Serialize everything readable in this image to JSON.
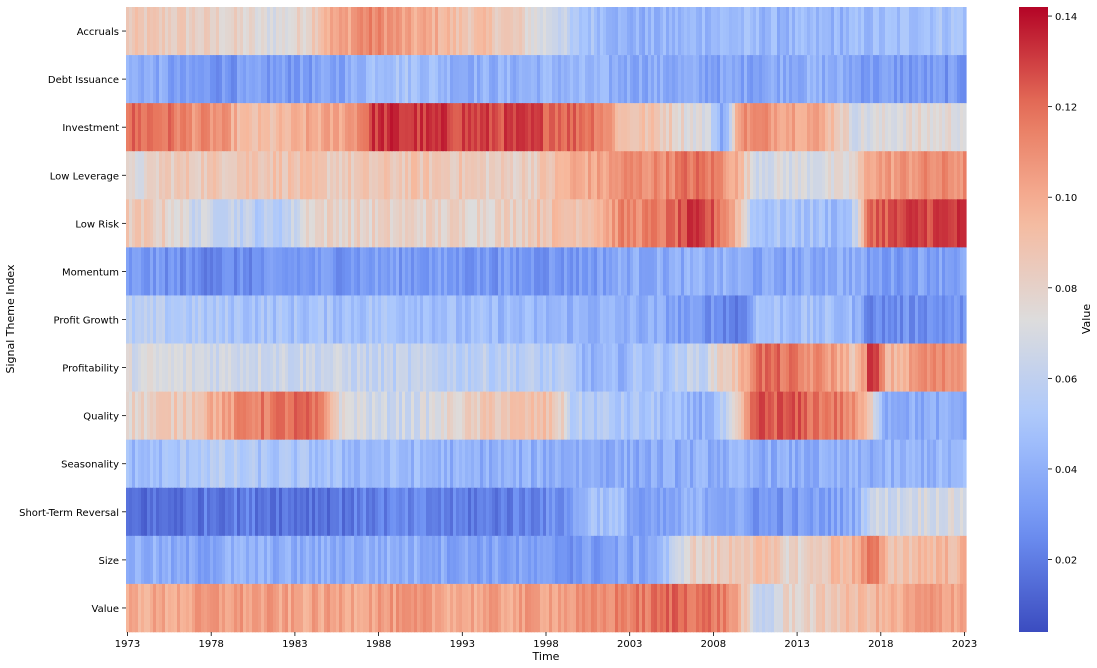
{
  "chart_data": {
    "type": "heatmap",
    "xlabel": "Time",
    "ylabel": "Signal Theme Index",
    "colorbar_label": "Value",
    "x_start": 1973,
    "x_end": 2023,
    "x_ticks": [
      "1973",
      "1978",
      "1983",
      "1988",
      "1993",
      "1998",
      "2003",
      "2008",
      "2013",
      "2018",
      "2023"
    ],
    "colorbar_range": [
      0.004,
      0.142
    ],
    "colorbar_ticks": [
      "0.02",
      "0.04",
      "0.06",
      "0.08",
      "0.10",
      "0.12",
      "0.14"
    ],
    "colormap": "coolwarm",
    "colormap_stops": [
      "#3b4cc0",
      "#6f92f3",
      "#aac7fd",
      "#dddcdc",
      "#f7b89c",
      "#e7745b",
      "#b40426"
    ],
    "rows": [
      {
        "name": "Accruals",
        "segments": [
          [
            1973,
            0.085
          ],
          [
            1978,
            0.08
          ],
          [
            1981,
            0.072
          ],
          [
            1985,
            0.1
          ],
          [
            1987,
            0.112
          ],
          [
            1990,
            0.1
          ],
          [
            1993,
            0.09
          ],
          [
            1998,
            0.07
          ],
          [
            2000,
            0.05
          ],
          [
            2003,
            0.04
          ],
          [
            2008,
            0.045
          ],
          [
            2013,
            0.042
          ],
          [
            2018,
            0.045
          ],
          [
            2021,
            0.05
          ]
        ]
      },
      {
        "name": "Debt Issuance",
        "segments": [
          [
            1973,
            0.04
          ],
          [
            1976,
            0.03
          ],
          [
            1983,
            0.032
          ],
          [
            1988,
            0.05
          ],
          [
            1993,
            0.04
          ],
          [
            1998,
            0.042
          ],
          [
            2003,
            0.038
          ],
          [
            2008,
            0.035
          ],
          [
            2013,
            0.04
          ],
          [
            2018,
            0.032
          ],
          [
            2021,
            0.03
          ]
        ]
      },
      {
        "name": "Investment",
        "segments": [
          [
            1973,
            0.12
          ],
          [
            1977,
            0.11
          ],
          [
            1980,
            0.09
          ],
          [
            1984,
            0.1
          ],
          [
            1988,
            0.132
          ],
          [
            1991,
            0.13
          ],
          [
            1995,
            0.128
          ],
          [
            2000,
            0.122
          ],
          [
            2003,
            0.09
          ],
          [
            2007,
            0.075
          ],
          [
            2009,
            0.04
          ],
          [
            2010,
            0.11
          ],
          [
            2013,
            0.105
          ],
          [
            2017,
            0.07
          ],
          [
            2020,
            0.075
          ]
        ]
      },
      {
        "name": "Low Leverage",
        "segments": [
          [
            1973,
            0.072
          ],
          [
            1975,
            0.085
          ],
          [
            1980,
            0.09
          ],
          [
            1985,
            0.085
          ],
          [
            1990,
            0.088
          ],
          [
            1995,
            0.082
          ],
          [
            2000,
            0.1
          ],
          [
            2003,
            0.11
          ],
          [
            2007,
            0.118
          ],
          [
            2011,
            0.07
          ],
          [
            2016,
            0.072
          ],
          [
            2018,
            0.105
          ],
          [
            2021,
            0.11
          ]
        ]
      },
      {
        "name": "Low Risk",
        "segments": [
          [
            1973,
            0.085
          ],
          [
            1977,
            0.065
          ],
          [
            1981,
            0.055
          ],
          [
            1984,
            0.08
          ],
          [
            1988,
            0.08
          ],
          [
            1993,
            0.08
          ],
          [
            1998,
            0.09
          ],
          [
            2003,
            0.112
          ],
          [
            2007,
            0.128
          ],
          [
            2011,
            0.05
          ],
          [
            2016,
            0.045
          ],
          [
            2018,
            0.125
          ],
          [
            2021,
            0.13
          ]
        ]
      },
      {
        "name": "Momentum",
        "segments": [
          [
            1973,
            0.03
          ],
          [
            1977,
            0.025
          ],
          [
            1983,
            0.03
          ],
          [
            1988,
            0.032
          ],
          [
            1993,
            0.03
          ],
          [
            1998,
            0.03
          ],
          [
            2003,
            0.038
          ],
          [
            2008,
            0.04
          ],
          [
            2011,
            0.035
          ],
          [
            2016,
            0.04
          ],
          [
            2018,
            0.032
          ],
          [
            2021,
            0.035
          ]
        ]
      },
      {
        "name": "Profit Growth",
        "segments": [
          [
            1973,
            0.055
          ],
          [
            1978,
            0.05
          ],
          [
            1983,
            0.048
          ],
          [
            1988,
            0.05
          ],
          [
            1993,
            0.045
          ],
          [
            1998,
            0.042
          ],
          [
            2003,
            0.04
          ],
          [
            2007,
            0.03
          ],
          [
            2010,
            0.02
          ],
          [
            2011,
            0.048
          ],
          [
            2016,
            0.045
          ],
          [
            2018,
            0.025
          ],
          [
            2021,
            0.028
          ]
        ]
      },
      {
        "name": "Profitability",
        "segments": [
          [
            1973,
            0.07
          ],
          [
            1978,
            0.068
          ],
          [
            1983,
            0.065
          ],
          [
            1988,
            0.06
          ],
          [
            1993,
            0.058
          ],
          [
            1998,
            0.055
          ],
          [
            2001,
            0.04
          ],
          [
            2004,
            0.05
          ],
          [
            2007,
            0.06
          ],
          [
            2009,
            0.085
          ],
          [
            2011,
            0.12
          ],
          [
            2014,
            0.11
          ],
          [
            2017,
            0.09
          ],
          [
            2018,
            0.13
          ],
          [
            2019,
            0.095
          ],
          [
            2021,
            0.11
          ]
        ]
      },
      {
        "name": "Quality",
        "segments": [
          [
            1973,
            0.08
          ],
          [
            1975,
            0.085
          ],
          [
            1978,
            0.1
          ],
          [
            1980,
            0.115
          ],
          [
            1983,
            0.12
          ],
          [
            1986,
            0.072
          ],
          [
            1988,
            0.065
          ],
          [
            1993,
            0.08
          ],
          [
            1995,
            0.088
          ],
          [
            1998,
            0.09
          ],
          [
            2000,
            0.055
          ],
          [
            2003,
            0.05
          ],
          [
            2007,
            0.04
          ],
          [
            2011,
            0.125
          ],
          [
            2015,
            0.118
          ],
          [
            2019,
            0.04
          ],
          [
            2021,
            0.038
          ]
        ]
      },
      {
        "name": "Seasonality",
        "segments": [
          [
            1973,
            0.045
          ],
          [
            1977,
            0.055
          ],
          [
            1981,
            0.05
          ],
          [
            1986,
            0.045
          ],
          [
            1993,
            0.04
          ],
          [
            1998,
            0.04
          ],
          [
            2003,
            0.038
          ],
          [
            2008,
            0.04
          ],
          [
            2013,
            0.038
          ],
          [
            2018,
            0.04
          ],
          [
            2021,
            0.042
          ]
        ]
      },
      {
        "name": "Short-Term Reversal",
        "segments": [
          [
            1973,
            0.015
          ],
          [
            1978,
            0.02
          ],
          [
            1983,
            0.018
          ],
          [
            1988,
            0.022
          ],
          [
            1993,
            0.02
          ],
          [
            1998,
            0.025
          ],
          [
            2001,
            0.05
          ],
          [
            2004,
            0.03
          ],
          [
            2007,
            0.04
          ],
          [
            2011,
            0.03
          ],
          [
            2016,
            0.035
          ],
          [
            2018,
            0.065
          ],
          [
            2021,
            0.07
          ]
        ]
      },
      {
        "name": "Size",
        "segments": [
          [
            1973,
            0.04
          ],
          [
            1976,
            0.035
          ],
          [
            1979,
            0.04
          ],
          [
            1983,
            0.038
          ],
          [
            1988,
            0.04
          ],
          [
            1993,
            0.035
          ],
          [
            1998,
            0.03
          ],
          [
            2003,
            0.035
          ],
          [
            2007,
            0.08
          ],
          [
            2010,
            0.09
          ],
          [
            2013,
            0.08
          ],
          [
            2016,
            0.095
          ],
          [
            2018,
            0.115
          ],
          [
            2019,
            0.09
          ],
          [
            2021,
            0.095
          ]
        ]
      },
      {
        "name": "Value",
        "segments": [
          [
            1973,
            0.1
          ],
          [
            1978,
            0.105
          ],
          [
            1983,
            0.102
          ],
          [
            1988,
            0.105
          ],
          [
            1993,
            0.102
          ],
          [
            1998,
            0.105
          ],
          [
            2003,
            0.115
          ],
          [
            2006,
            0.122
          ],
          [
            2008,
            0.118
          ],
          [
            2011,
            0.06
          ],
          [
            2013,
            0.08
          ],
          [
            2016,
            0.09
          ],
          [
            2018,
            0.095
          ],
          [
            2021,
            0.105
          ]
        ]
      }
    ]
  }
}
